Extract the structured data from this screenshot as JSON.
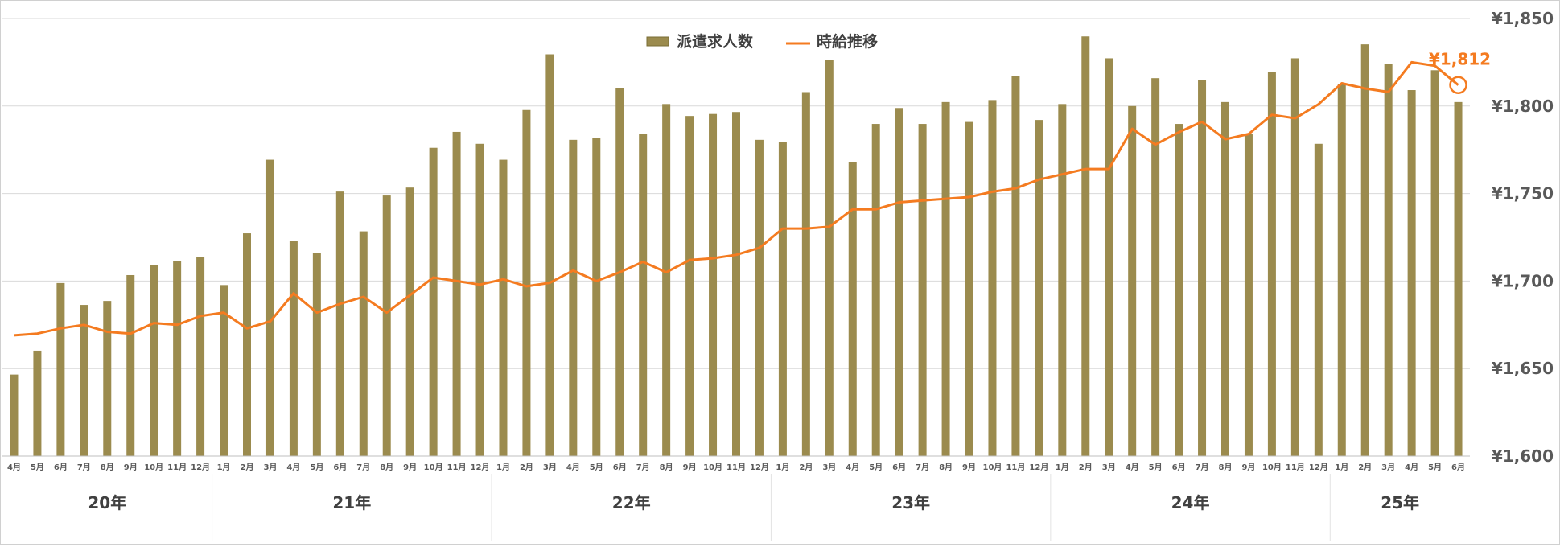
{
  "chart_data": {
    "type": "bar",
    "series": [
      {
        "name": "派遣求人数",
        "kind": "bar",
        "color": "#9b8b4e",
        "values": [
          41,
          53,
          87,
          76,
          78,
          91,
          96,
          98,
          100,
          86,
          112,
          149,
          108,
          102,
          133,
          113,
          131,
          135,
          155,
          163,
          157,
          149,
          174,
          202,
          159,
          160,
          185,
          162,
          177,
          171,
          172,
          173,
          159,
          158,
          183,
          199,
          148,
          167,
          175,
          167,
          178,
          168,
          179,
          191,
          169,
          177,
          211,
          200,
          176,
          190,
          167,
          189,
          178,
          162,
          193,
          200,
          157,
          187,
          207,
          197,
          184,
          194,
          178
        ]
      },
      {
        "name": "時給推移",
        "kind": "line",
        "color": "#f47b20",
        "values": [
          1669,
          1670,
          1673,
          1675,
          1671,
          1670,
          1676,
          1675,
          1680,
          1682,
          1673,
          1677,
          1693,
          1682,
          1687,
          1691,
          1682,
          1692,
          1702,
          1700,
          1698,
          1701,
          1697,
          1699,
          1706,
          1700,
          1705,
          1711,
          1705,
          1712,
          1713,
          1715,
          1719,
          1730,
          1730,
          1731,
          1741,
          1741,
          1745,
          1746,
          1747,
          1748,
          1751,
          1753,
          1758,
          1761,
          1764,
          1764,
          1787,
          1778,
          1785,
          1791,
          1781,
          1784,
          1795,
          1793,
          1801,
          1813,
          1810,
          1808,
          1825,
          1823,
          1812
        ]
      }
    ],
    "categories": [
      "4月",
      "5月",
      "6月",
      "7月",
      "8月",
      "9月",
      "10月",
      "11月",
      "12月",
      "1月",
      "2月",
      "3月",
      "4月",
      "5月",
      "6月",
      "7月",
      "8月",
      "9月",
      "10月",
      "11月",
      "12月",
      "1月",
      "2月",
      "3月",
      "4月",
      "5月",
      "6月",
      "7月",
      "8月",
      "9月",
      "10月",
      "11月",
      "12月",
      "1月",
      "2月",
      "3月",
      "4月",
      "5月",
      "6月",
      "7月",
      "8月",
      "9月",
      "10月",
      "11月",
      "12月",
      "1月",
      "2月",
      "3月",
      "4月",
      "5月",
      "6月",
      "7月",
      "8月",
      "9月",
      "10月",
      "11月",
      "12月",
      "1月",
      "2月",
      "3月",
      "4月",
      "5月",
      "6月"
    ],
    "year_groups": [
      {
        "label": "20年",
        "months": 9
      },
      {
        "label": "21年",
        "months": 12
      },
      {
        "label": "22年",
        "months": 12
      },
      {
        "label": "23年",
        "months": 12
      },
      {
        "label": "24年",
        "months": 12
      },
      {
        "label": "25年",
        "months": 6
      }
    ],
    "y_right_ticks": [
      "¥1,600",
      "¥1,650",
      "¥1,700",
      "¥1,750",
      "¥1,800",
      "¥1,850"
    ],
    "y_right_range": [
      1600,
      1850
    ],
    "bar_axis_max": 220,
    "annotation": {
      "text": "¥1,812"
    },
    "legend_position": "top-center",
    "grid": true
  }
}
